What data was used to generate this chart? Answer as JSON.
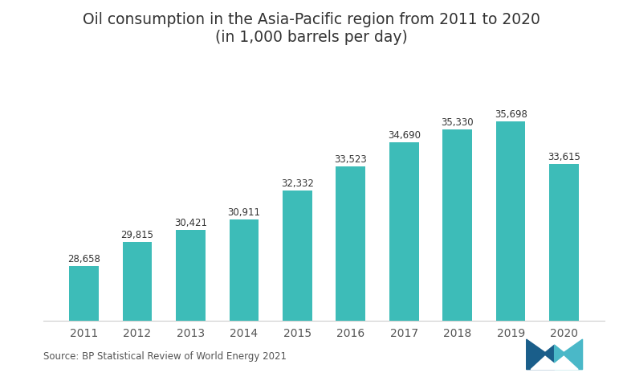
{
  "title_line1": "Oil consumption in the Asia-Pacific region from 2011 to 2020",
  "title_line2": "(in 1,000 barrels per day)",
  "years": [
    "2011",
    "2012",
    "2013",
    "2014",
    "2015",
    "2016",
    "2017",
    "2018",
    "2019",
    "2020"
  ],
  "values": [
    28658,
    29815,
    30421,
    30911,
    32332,
    33523,
    34690,
    35330,
    35698,
    33615
  ],
  "labels": [
    "28,658",
    "29,815",
    "30,421",
    "30,911",
    "32,332",
    "33,523",
    "34,690",
    "35,330",
    "35,698",
    "33,615"
  ],
  "bar_color": "#3dbcb8",
  "background_color": "#ffffff",
  "source_text": "Source: BP Statistical Review of World Energy 2021",
  "title_fontsize": 13.5,
  "label_fontsize": 8.5,
  "tick_fontsize": 10,
  "source_fontsize": 8.5,
  "ylim_min": 26000,
  "ylim_max": 38500,
  "bar_width": 0.55,
  "logo_color_dark": "#1a5e8a",
  "logo_color_light": "#4ab8c8"
}
